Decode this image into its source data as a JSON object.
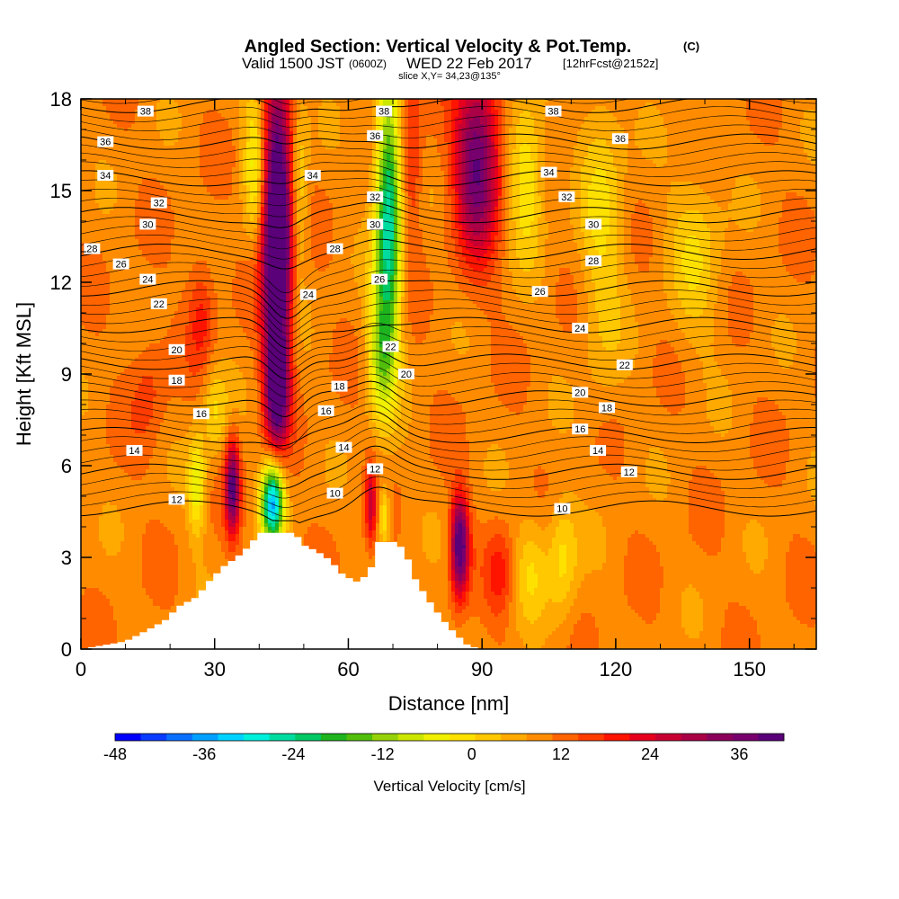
{
  "chart_data": {
    "type": "heatmap",
    "title": "Angled Section: Vertical Velocity & Pot.Temp.",
    "title_units": "(C)",
    "subtitle_prefix": "Valid 1500 JST",
    "subtitle_utc": "(0600Z)",
    "subtitle_date": "WED 22 Feb 2017",
    "subtitle_fcst": "[12hrFcst@2152z]",
    "subtitle2": "slice X,Y= 34,23@135°",
    "xlabel": "Distance [nm]",
    "ylabel": "Height [Kft MSL]",
    "xlim": [
      0,
      165
    ],
    "ylim": [
      0,
      18
    ],
    "xticks": [
      "0",
      "30",
      "60",
      "90",
      "120",
      "150"
    ],
    "yticks": [
      "0",
      "3",
      "6",
      "9",
      "12",
      "15",
      "18"
    ],
    "colorbar": {
      "label": "Vertical Velocity [cm/s]",
      "min": -48,
      "max": 42,
      "step": 3,
      "ticks": [
        "-48",
        "-36",
        "-24",
        "-12",
        "0",
        "12",
        "24",
        "36"
      ],
      "colors": [
        "#0000ff",
        "#0a3cff",
        "#0a6eff",
        "#00a0ff",
        "#00d2ff",
        "#00f0dc",
        "#00dca0",
        "#00c864",
        "#1eb41e",
        "#50be0a",
        "#96d20a",
        "#cce600",
        "#f0f000",
        "#ffe100",
        "#ffc800",
        "#ffaa00",
        "#ff8c00",
        "#ff6400",
        "#ff3c00",
        "#ff1400",
        "#e6001e",
        "#c80032",
        "#aa0046",
        "#8c005a",
        "#78006e",
        "#5a0078"
      ]
    },
    "w_features": [
      {
        "x": 44,
        "z": 13.5,
        "sx": 3.2,
        "sz": 4.5,
        "amp": 42
      },
      {
        "x": 44,
        "z": 8.5,
        "sx": 2.5,
        "sz": 1.8,
        "amp": 26
      },
      {
        "x": 39,
        "z": 16,
        "sx": 2.5,
        "sz": 2.5,
        "amp": -12
      },
      {
        "x": 49,
        "z": 15,
        "sx": 2.0,
        "sz": 3.0,
        "amp": -9
      },
      {
        "x": 69,
        "z": 14,
        "sx": 3.0,
        "sz": 4.5,
        "amp": -32
      },
      {
        "x": 67,
        "z": 9.5,
        "sx": 3.0,
        "sz": 2.0,
        "amp": -13
      },
      {
        "x": 74,
        "z": 16,
        "sx": 2.5,
        "sz": 3.0,
        "amp": 9
      },
      {
        "x": 89,
        "z": 16,
        "sx": 5.0,
        "sz": 3.0,
        "amp": 26
      },
      {
        "x": 100,
        "z": 15.5,
        "sx": 4.0,
        "sz": 2.5,
        "amp": -12
      },
      {
        "x": 117,
        "z": 14,
        "sx": 5.0,
        "sz": 5.0,
        "amp": -8
      },
      {
        "x": 138,
        "z": 13,
        "sx": 6.0,
        "sz": 3.0,
        "amp": -7
      },
      {
        "x": 26,
        "z": 5.3,
        "sx": 2.0,
        "sz": 1.6,
        "amp": -13
      },
      {
        "x": 34,
        "z": 5.3,
        "sx": 1.6,
        "sz": 1.5,
        "amp": 26
      },
      {
        "x": 30,
        "z": 7.8,
        "sx": 3.0,
        "sz": 1.5,
        "amp": -8
      },
      {
        "x": 43,
        "z": 4.8,
        "sx": 2.5,
        "sz": 1.3,
        "amp": -38
      },
      {
        "x": 65,
        "z": 4.8,
        "sx": 1.2,
        "sz": 1.3,
        "amp": 14
      },
      {
        "x": 68,
        "z": 4.3,
        "sx": 1.2,
        "sz": 1.0,
        "amp": -12
      },
      {
        "x": 85,
        "z": 3.4,
        "sx": 2.0,
        "sz": 1.6,
        "amp": 30
      },
      {
        "x": 101,
        "z": 2.7,
        "sx": 3.5,
        "sz": 1.8,
        "amp": -7
      },
      {
        "x": 108,
        "z": 3.0,
        "sx": 3.5,
        "sz": 2.0,
        "amp": -9
      },
      {
        "x": 94,
        "z": 2.5,
        "sx": 3.0,
        "sz": 1.5,
        "amp": 8
      },
      {
        "x": 27,
        "z": 11.0,
        "sx": 3.0,
        "sz": 2.0,
        "amp": 8
      },
      {
        "x": 15,
        "z": 8.5,
        "sx": 4.0,
        "sz": 2.0,
        "amp": 5
      }
    ],
    "theta_levels": [
      10,
      12,
      14,
      16,
      18,
      20,
      22,
      24,
      26,
      28,
      30,
      32,
      34,
      36,
      38
    ],
    "theta_labels": [
      {
        "text": "38",
        "x": 14.5,
        "z": 17.6
      },
      {
        "text": "36",
        "x": 5.5,
        "z": 16.6
      },
      {
        "text": "34",
        "x": 5.5,
        "z": 15.5
      },
      {
        "text": "32",
        "x": 17.5,
        "z": 14.6
      },
      {
        "text": "30",
        "x": 15.0,
        "z": 13.9
      },
      {
        "text": "28",
        "x": 2.5,
        "z": 13.1
      },
      {
        "text": "26",
        "x": 9.0,
        "z": 12.6
      },
      {
        "text": "24",
        "x": 15.0,
        "z": 12.1
      },
      {
        "text": "22",
        "x": 17.5,
        "z": 11.3
      },
      {
        "text": "20",
        "x": 21.5,
        "z": 9.8
      },
      {
        "text": "18",
        "x": 21.5,
        "z": 8.8
      },
      {
        "text": "16",
        "x": 27.0,
        "z": 7.7
      },
      {
        "text": "14",
        "x": 12.0,
        "z": 6.5
      },
      {
        "text": "12",
        "x": 21.5,
        "z": 4.9
      },
      {
        "text": "38",
        "x": 68.0,
        "z": 17.6
      },
      {
        "text": "36",
        "x": 66.0,
        "z": 16.8
      },
      {
        "text": "34",
        "x": 52.0,
        "z": 15.5
      },
      {
        "text": "32",
        "x": 66.0,
        "z": 14.8
      },
      {
        "text": "30",
        "x": 66.0,
        "z": 13.9
      },
      {
        "text": "28",
        "x": 57.0,
        "z": 13.1
      },
      {
        "text": "26",
        "x": 67.0,
        "z": 12.1
      },
      {
        "text": "24",
        "x": 51.0,
        "z": 11.6
      },
      {
        "text": "22",
        "x": 69.5,
        "z": 9.9
      },
      {
        "text": "20",
        "x": 73.0,
        "z": 9.0
      },
      {
        "text": "18",
        "x": 58.0,
        "z": 8.6
      },
      {
        "text": "16",
        "x": 55.0,
        "z": 7.8
      },
      {
        "text": "14",
        "x": 59.0,
        "z": 6.6
      },
      {
        "text": "12",
        "x": 66.0,
        "z": 5.9
      },
      {
        "text": "10",
        "x": 57.0,
        "z": 5.1
      },
      {
        "text": "38",
        "x": 106.0,
        "z": 17.6
      },
      {
        "text": "36",
        "x": 121.0,
        "z": 16.7
      },
      {
        "text": "34",
        "x": 105.0,
        "z": 15.6
      },
      {
        "text": "32",
        "x": 109.0,
        "z": 14.8
      },
      {
        "text": "30",
        "x": 115.0,
        "z": 13.9
      },
      {
        "text": "28",
        "x": 115.0,
        "z": 12.7
      },
      {
        "text": "26",
        "x": 103.0,
        "z": 11.7
      },
      {
        "text": "24",
        "x": 112.0,
        "z": 10.5
      },
      {
        "text": "22",
        "x": 122.0,
        "z": 9.3
      },
      {
        "text": "20",
        "x": 112.0,
        "z": 8.4
      },
      {
        "text": "18",
        "x": 118.0,
        "z": 7.9
      },
      {
        "text": "16",
        "x": 112.0,
        "z": 7.2
      },
      {
        "text": "14",
        "x": 116.0,
        "z": 6.5
      },
      {
        "text": "12",
        "x": 123.0,
        "z": 5.8
      },
      {
        "text": "10",
        "x": 108.0,
        "z": 4.6
      }
    ],
    "terrain": [
      [
        0,
        0
      ],
      [
        10,
        0.25
      ],
      [
        16,
        0.7
      ],
      [
        19,
        0.95
      ],
      [
        22,
        1.4
      ],
      [
        26,
        1.7
      ],
      [
        29,
        2.25
      ],
      [
        32,
        2.7
      ],
      [
        35,
        3.0
      ],
      [
        38,
        3.4
      ],
      [
        40,
        3.8
      ],
      [
        48,
        3.8
      ],
      [
        50,
        3.4
      ],
      [
        53,
        3.2
      ],
      [
        56,
        2.9
      ],
      [
        59,
        2.4
      ],
      [
        62,
        2.2
      ],
      [
        65,
        2.5
      ],
      [
        66,
        3.5
      ],
      [
        71,
        3.5
      ],
      [
        73,
        3.1
      ],
      [
        75,
        2.3
      ],
      [
        78,
        1.6
      ],
      [
        81,
        1.0
      ],
      [
        84,
        0.5
      ],
      [
        87,
        0.1
      ],
      [
        90,
        0
      ]
    ]
  }
}
